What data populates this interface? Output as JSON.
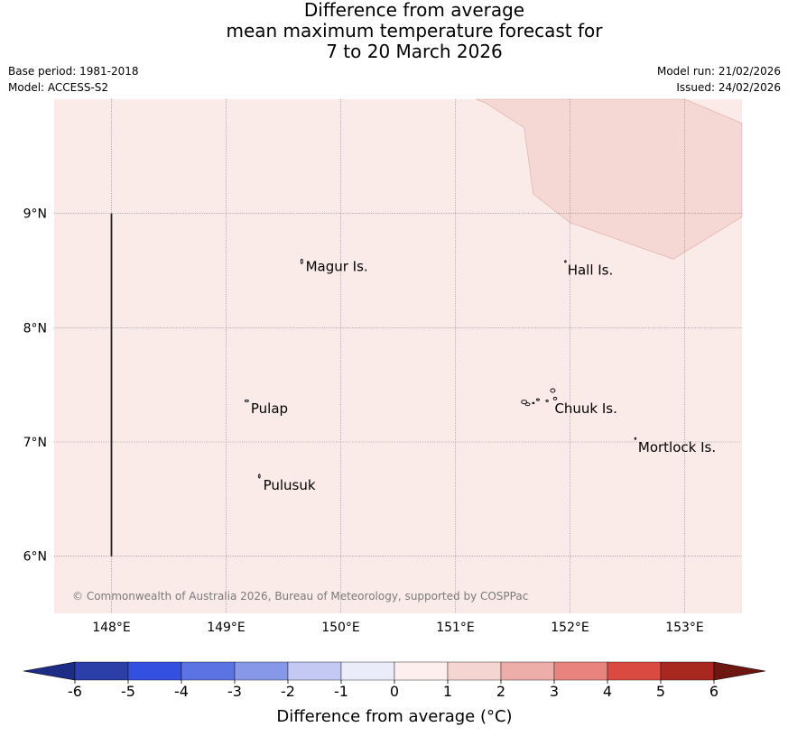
{
  "title_lines": [
    "Difference from average",
    "mean maximum temperature forecast for",
    "7 to 20 March 2026"
  ],
  "meta": {
    "base_period": "Base period: 1981-2018",
    "model": "Model: ACCESS-S2",
    "model_run": "Model run: 21/02/2026",
    "issued": "Issued: 24/02/2026"
  },
  "map": {
    "lon_range": [
      147.5,
      153.5
    ],
    "lat_range": [
      5.5,
      10.0
    ],
    "lon_ticks": [
      "148°E",
      "149°E",
      "150°E",
      "151°E",
      "152°E",
      "153°E"
    ],
    "lat_ticks": [
      "9°N",
      "8°N",
      "7°N",
      "6°N"
    ],
    "background_category": "0 to 1",
    "background_color": "#fbebe8",
    "warm_region_category": "1 to 2",
    "warm_region_color": "#f5d7d4",
    "places": [
      {
        "name": "Magur Is.",
        "lon": 149.67,
        "lat": 8.55
      },
      {
        "name": "Hall Is.",
        "lon": 151.97,
        "lat": 8.52
      },
      {
        "name": "Pulap",
        "lon": 149.2,
        "lat": 7.3
      },
      {
        "name": "Chuuk Is.",
        "lon": 151.85,
        "lat": 7.3
      },
      {
        "name": "Mortlock Is.",
        "lon": 152.57,
        "lat": 6.97
      },
      {
        "name": "Pulusuk",
        "lon": 149.3,
        "lat": 6.63
      }
    ],
    "copyright": "© Commonwealth of Australia 2026, Bureau of Meteorology, supported by COSPPac"
  },
  "colorbar": {
    "ticks": [
      "-6",
      "-5",
      "-4",
      "-3",
      "-2",
      "-1",
      "0",
      "1",
      "2",
      "3",
      "4",
      "5",
      "6"
    ],
    "bins": [
      {
        "range": "<-6",
        "color": "#1d2d86"
      },
      {
        "range": "-6 to -5",
        "color": "#2c3fa8"
      },
      {
        "range": "-5 to -4",
        "color": "#3450e1"
      },
      {
        "range": "-4 to -3",
        "color": "#5c73e3"
      },
      {
        "range": "-3 to -2",
        "color": "#8898e8"
      },
      {
        "range": "-2 to -1",
        "color": "#c3c9f2"
      },
      {
        "range": "-1 to 0",
        "color": "#ebecfa"
      },
      {
        "range": "0 to 1",
        "color": "#fdefed"
      },
      {
        "range": "1 to 2",
        "color": "#f5d5d2"
      },
      {
        "range": "2 to 3",
        "color": "#edaeaa"
      },
      {
        "range": "3 to 4",
        "color": "#e8837d"
      },
      {
        "range": "4 to 5",
        "color": "#db4a40"
      },
      {
        "range": "5 to 6",
        "color": "#a82820"
      },
      {
        "range": ">6",
        "color": "#6e1612"
      }
    ],
    "label": "Difference from average (°C)"
  }
}
